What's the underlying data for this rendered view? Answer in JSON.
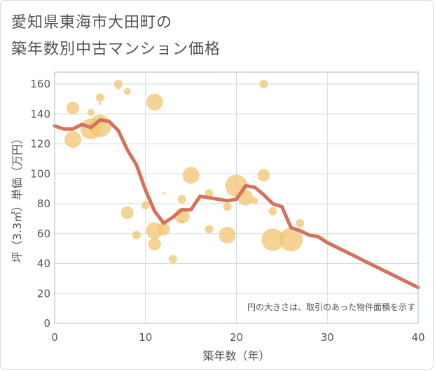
{
  "title": {
    "line1": "愛知県東海市大田町の",
    "line2": "築年数別中古マンション価格"
  },
  "note": "円の大きさは、取引のあった物件面積を示す",
  "colors": {
    "bubble": "#f2c777",
    "line": "#d4725b",
    "grid": "#cfdbe8",
    "plot_border": "#aab8c8"
  },
  "chart_data": {
    "type": "scatter",
    "xlabel": "築年数（年）",
    "ylabel": "坪（3.3㎡）単価（万円）",
    "xlim": [
      0,
      40
    ],
    "ylim": [
      0,
      168
    ],
    "xticks": [
      0,
      10,
      20,
      30,
      40
    ],
    "yticks": [
      0,
      20,
      40,
      60,
      80,
      100,
      120,
      140,
      160
    ],
    "grid": true,
    "bubbles": [
      {
        "x": 2,
        "y": 144,
        "size": 9
      },
      {
        "x": 2,
        "y": 123,
        "size": 12
      },
      {
        "x": 4,
        "y": 141,
        "size": 5
      },
      {
        "x": 4,
        "y": 130,
        "size": 15
      },
      {
        "x": 5,
        "y": 151,
        "size": 6
      },
      {
        "x": 5,
        "y": 147,
        "size": 2
      },
      {
        "x": 5,
        "y": 132,
        "size": 16
      },
      {
        "x": 7,
        "y": 160,
        "size": 6
      },
      {
        "x": 7,
        "y": 157,
        "size": 2
      },
      {
        "x": 8,
        "y": 155,
        "size": 5
      },
      {
        "x": 8,
        "y": 74,
        "size": 9
      },
      {
        "x": 9,
        "y": 59,
        "size": 6
      },
      {
        "x": 10,
        "y": 79,
        "size": 6
      },
      {
        "x": 11,
        "y": 148,
        "size": 12
      },
      {
        "x": 11,
        "y": 62,
        "size": 12
      },
      {
        "x": 11,
        "y": 53,
        "size": 9
      },
      {
        "x": 12,
        "y": 63,
        "size": 9
      },
      {
        "x": 12,
        "y": 87,
        "size": 2
      },
      {
        "x": 13,
        "y": 43,
        "size": 6
      },
      {
        "x": 14,
        "y": 83,
        "size": 6
      },
      {
        "x": 14,
        "y": 72,
        "size": 11
      },
      {
        "x": 14,
        "y": 68,
        "size": 3
      },
      {
        "x": 15,
        "y": 99,
        "size": 12
      },
      {
        "x": 17,
        "y": 87,
        "size": 6
      },
      {
        "x": 17,
        "y": 63,
        "size": 6
      },
      {
        "x": 19,
        "y": 78,
        "size": 6
      },
      {
        "x": 19,
        "y": 59,
        "size": 12
      },
      {
        "x": 20,
        "y": 92,
        "size": 16
      },
      {
        "x": 21,
        "y": 84,
        "size": 11
      },
      {
        "x": 22,
        "y": 82,
        "size": 5
      },
      {
        "x": 23,
        "y": 160,
        "size": 6
      },
      {
        "x": 23,
        "y": 99,
        "size": 9
      },
      {
        "x": 24,
        "y": 75,
        "size": 6
      },
      {
        "x": 24,
        "y": 56,
        "size": 16
      },
      {
        "x": 26,
        "y": 56,
        "size": 17
      },
      {
        "x": 27,
        "y": 67,
        "size": 6
      }
    ],
    "line": {
      "x": [
        0,
        1,
        2,
        3,
        4,
        5,
        6,
        7,
        8,
        9,
        10,
        11,
        12,
        13,
        14,
        15,
        16,
        17,
        18,
        19,
        20,
        21,
        22,
        23,
        24,
        25,
        26,
        27,
        28,
        29,
        30,
        31,
        32,
        33,
        34,
        35,
        36,
        37,
        38,
        39,
        40
      ],
      "y": [
        132,
        130,
        130,
        133,
        131,
        136,
        135,
        129,
        116,
        106,
        89,
        75,
        67,
        71,
        76,
        76,
        85,
        84,
        83,
        82,
        83,
        92,
        91,
        86,
        80,
        78,
        64,
        62,
        59,
        58,
        54,
        51,
        48,
        45,
        42,
        39,
        36,
        33,
        30,
        27,
        24
      ]
    }
  }
}
